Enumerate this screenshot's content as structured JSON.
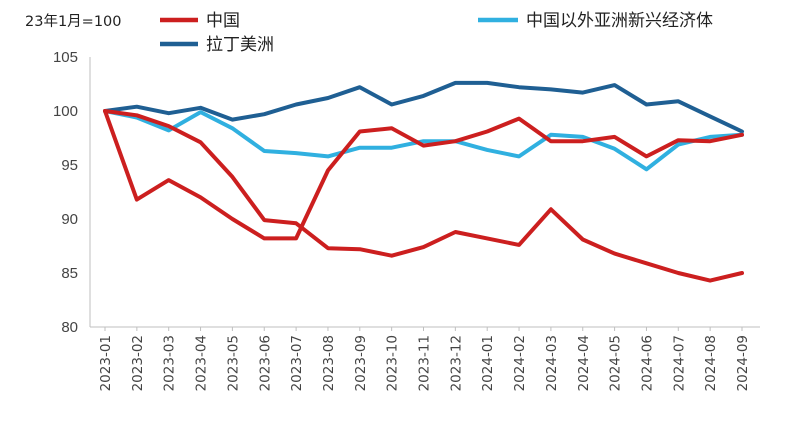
{
  "chart_data": {
    "type": "line",
    "note": "23年1月=100",
    "categories": [
      "2023-01",
      "2023-02",
      "2023-03",
      "2023-04",
      "2023-05",
      "2023-06",
      "2023-07",
      "2023-08",
      "2023-09",
      "2023-10",
      "2023-11",
      "2023-12",
      "2024-01",
      "2024-02",
      "2024-03",
      "2024-04",
      "2024-05",
      "2024-06",
      "2024-07",
      "2024-08",
      "2024-09"
    ],
    "ylim": [
      80,
      105
    ],
    "yticks": [
      "80",
      "85",
      "90",
      "95",
      "100",
      "105"
    ],
    "xlabel": "",
    "ylabel": "",
    "grid": false,
    "legend_position": "top",
    "series": [
      {
        "name": "中国",
        "color": "#cc1f1f",
        "values": [
          100,
          91.8,
          93.6,
          92.0,
          90.0,
          88.2,
          88.2,
          94.5,
          98.1,
          98.4,
          96.8,
          97.2,
          98.1,
          99.3,
          97.2,
          97.2,
          97.6,
          95.8,
          97.3,
          97.2,
          97.8
        ]
      },
      {
        "name": "中国",
        "color": "#cc1f1f",
        "values": [
          100,
          99.6,
          98.6,
          97.1,
          93.9,
          89.9,
          89.6,
          87.3,
          87.2,
          86.6,
          87.4,
          88.8,
          88.2,
          87.6,
          90.9,
          88.1,
          86.8,
          85.9,
          85.0,
          84.3,
          85.0
        ]
      },
      {
        "name": "拉丁美洲",
        "color": "#1f5f93",
        "values": [
          100,
          100.4,
          99.8,
          100.3,
          99.2,
          99.7,
          100.6,
          101.2,
          102.2,
          100.6,
          101.4,
          102.6,
          102.6,
          102.2,
          102.0,
          101.7,
          102.4,
          100.6,
          100.9,
          99.5,
          98.1
        ]
      },
      {
        "name": "中国以外亚洲新兴经济体",
        "color": "#30b0e0",
        "values": [
          100,
          99.4,
          98.2,
          99.9,
          98.4,
          96.3,
          96.1,
          95.8,
          96.6,
          96.6,
          97.2,
          97.2,
          96.4,
          95.8,
          97.8,
          97.6,
          96.5,
          94.6,
          96.9,
          97.6,
          97.8
        ]
      }
    ]
  }
}
